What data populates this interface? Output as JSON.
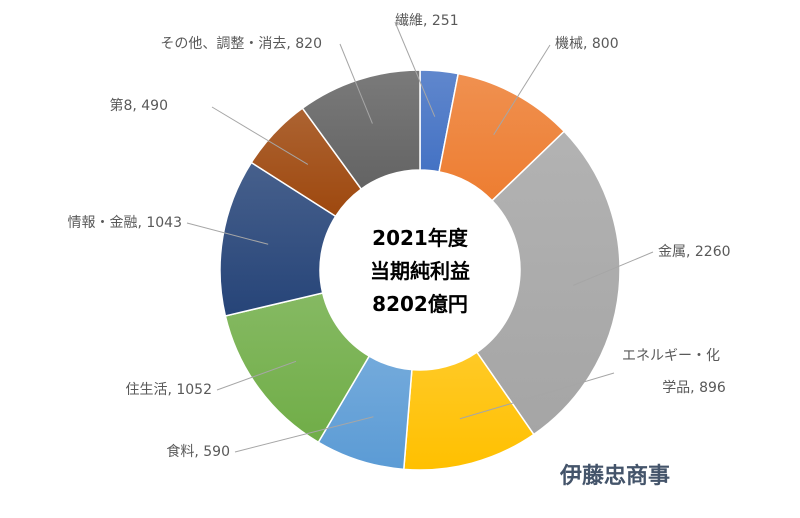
{
  "company": "伊藤忠商事",
  "chart_data": {
    "type": "pie",
    "variant": "donut",
    "center_text": [
      "2021年度",
      "当期純利益",
      "8202億円"
    ],
    "slices": [
      {
        "label_lines": [
          "繊維, 251"
        ],
        "value": 251,
        "color": "#4472c4"
      },
      {
        "label_lines": [
          "機械, 800"
        ],
        "value": 800,
        "color": "#ed7d31"
      },
      {
        "label_lines": [
          "金属, 2260"
        ],
        "value": 2260,
        "color": "#a5a5a5"
      },
      {
        "label_lines": [
          "エネルギー・化",
          "学品, 896"
        ],
        "value": 896,
        "color": "#ffc000"
      },
      {
        "label_lines": [
          "食料, 590"
        ],
        "value": 590,
        "color": "#5b9bd5"
      },
      {
        "label_lines": [
          "住生活, 1052"
        ],
        "value": 1052,
        "color": "#70ad47"
      },
      {
        "label_lines": [
          "情報・金融, 1043"
        ],
        "value": 1043,
        "color": "#264478"
      },
      {
        "label_lines": [
          "第8, 490"
        ],
        "value": 490,
        "color": "#9e480e"
      },
      {
        "label_lines": [
          "その他、調整・消去, 820"
        ],
        "value": 820,
        "color": "#636363"
      }
    ]
  }
}
